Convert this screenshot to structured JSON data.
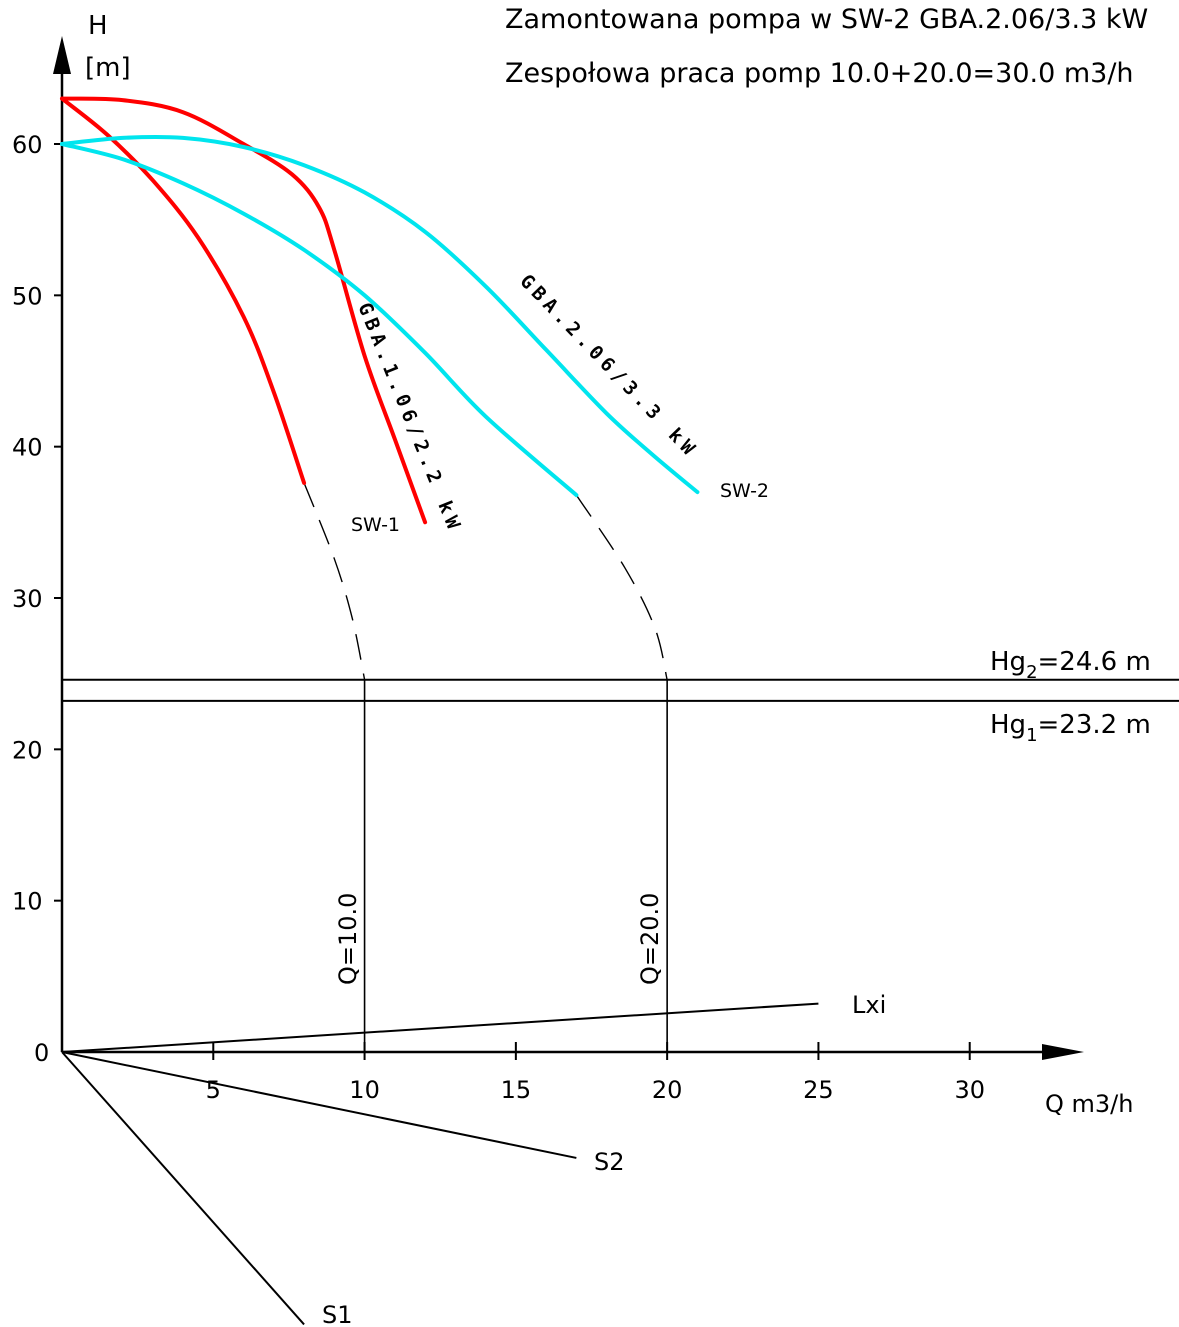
{
  "chart_data": {
    "type": "line",
    "title_line1": "Zamontowana pompa w SW-2 GBA.2.06/3.3 kW",
    "title_line2": "Zespołowa praca pomp 10.0+20.0=30.0 m3/h",
    "y_axis": {
      "label_top": "H",
      "label_unit": "[m]",
      "range": [
        0,
        60
      ],
      "ticks": [
        0,
        10,
        20,
        30,
        40,
        50,
        60
      ]
    },
    "x_axis": {
      "label": "Q m3/h",
      "range": [
        0,
        30
      ],
      "ticks": [
        5,
        10,
        15,
        20,
        25,
        30
      ]
    },
    "colors": {
      "pump1": "#ff0000",
      "pump2": "#00e5ee",
      "axes": "#000000"
    },
    "series": [
      {
        "name": "GBA.1.06/2.2 kW",
        "station": "SW-1",
        "color": "#ff0000",
        "points": [
          [
            0,
            63
          ],
          [
            2,
            62.9
          ],
          [
            4,
            62.1
          ],
          [
            6,
            60
          ],
          [
            7.6,
            58
          ],
          [
            8.5,
            55.8
          ],
          [
            9,
            53
          ],
          [
            10,
            46
          ],
          [
            11,
            40.5
          ],
          [
            12,
            35
          ]
        ]
      },
      {
        "name": "",
        "color": "#ff0000",
        "points": [
          [
            0,
            63
          ],
          [
            1.5,
            60.6
          ],
          [
            3,
            57.6
          ],
          [
            4.5,
            53.8
          ],
          [
            6,
            48.6
          ],
          [
            7,
            43.6
          ],
          [
            8,
            37.6
          ]
        ]
      },
      {
        "name": "GBA.2.06/3.3 kW",
        "station": "SW-2",
        "color": "#00e5ee",
        "points": [
          [
            0,
            60
          ],
          [
            2,
            60.4
          ],
          [
            4,
            60.4
          ],
          [
            6,
            59.8
          ],
          [
            8,
            58.6
          ],
          [
            10,
            56.8
          ],
          [
            12,
            54.2
          ],
          [
            14,
            50.6
          ],
          [
            16,
            46.4
          ],
          [
            18,
            42.2
          ],
          [
            19.5,
            39.5
          ],
          [
            21,
            37
          ]
        ]
      },
      {
        "name": "",
        "color": "#00e5ee",
        "points": [
          [
            0,
            60
          ],
          [
            2,
            59
          ],
          [
            4,
            57.4
          ],
          [
            6,
            55.4
          ],
          [
            8,
            53
          ],
          [
            10,
            50
          ],
          [
            12,
            46.2
          ],
          [
            14,
            42
          ],
          [
            17,
            36.8
          ]
        ]
      }
    ],
    "extrapolations": [
      {
        "points": [
          [
            8,
            37.6
          ],
          [
            9,
            32.6
          ],
          [
            9.6,
            28.6
          ],
          [
            10,
            24.6
          ]
        ]
      },
      {
        "points": [
          [
            17,
            36.8
          ],
          [
            18.6,
            32
          ],
          [
            19.6,
            28
          ],
          [
            20,
            24.6
          ]
        ]
      }
    ],
    "hlines": [
      {
        "label_prefix": "Hg",
        "label_sub": "2",
        "label_suffix": "=24.6  m",
        "value": 24.6
      },
      {
        "label_prefix": "Hg",
        "label_sub": "1",
        "label_suffix": "=23.2  m",
        "value": 23.2
      }
    ],
    "vlines": [
      {
        "label": "Q=10.0",
        "value": 10,
        "top": 24.6
      },
      {
        "label": "Q=20.0",
        "value": 20,
        "top": 24.6
      }
    ],
    "lines_from_origin": [
      {
        "label": "Lxi",
        "end": [
          25,
          3.2
        ]
      },
      {
        "label": "S2",
        "end": [
          17,
          -7
        ]
      },
      {
        "label": "S1",
        "end": [
          8,
          -18
        ]
      }
    ],
    "annotations": [
      {
        "text": "SW-1",
        "pos": [
          9.6,
          34.5
        ]
      },
      {
        "text": "SW-2",
        "pos": [
          21.6,
          37.2
        ]
      }
    ]
  }
}
